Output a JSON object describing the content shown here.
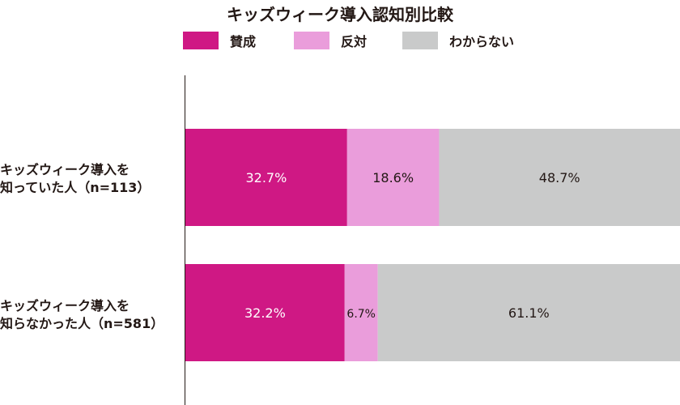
{
  "chart_data": {
    "type": "bar",
    "orientation": "horizontal",
    "stacked": true,
    "title": "キッズウィーク導入認知別比較",
    "xlim": [
      0,
      100
    ],
    "legend_position": "top",
    "categories": [
      [
        "キッズウィーク導入を",
        "知っていた人（n=113）"
      ],
      [
        "キッズウィーク導入を",
        "知らなかった人（n=581）"
      ]
    ],
    "series": [
      {
        "name": "賛成",
        "color": "#cf1884",
        "values": [
          32.7,
          32.2
        ],
        "labels": [
          "32.7%",
          "32.2%"
        ]
      },
      {
        "name": "反対",
        "color": "#ea9ddb",
        "values": [
          18.6,
          6.7
        ],
        "labels": [
          "18.6%",
          "6.7%"
        ]
      },
      {
        "name": "わからない",
        "color": "#c9caca",
        "values": [
          48.7,
          61.1
        ],
        "labels": [
          "48.7%",
          "61.1%"
        ]
      }
    ]
  }
}
